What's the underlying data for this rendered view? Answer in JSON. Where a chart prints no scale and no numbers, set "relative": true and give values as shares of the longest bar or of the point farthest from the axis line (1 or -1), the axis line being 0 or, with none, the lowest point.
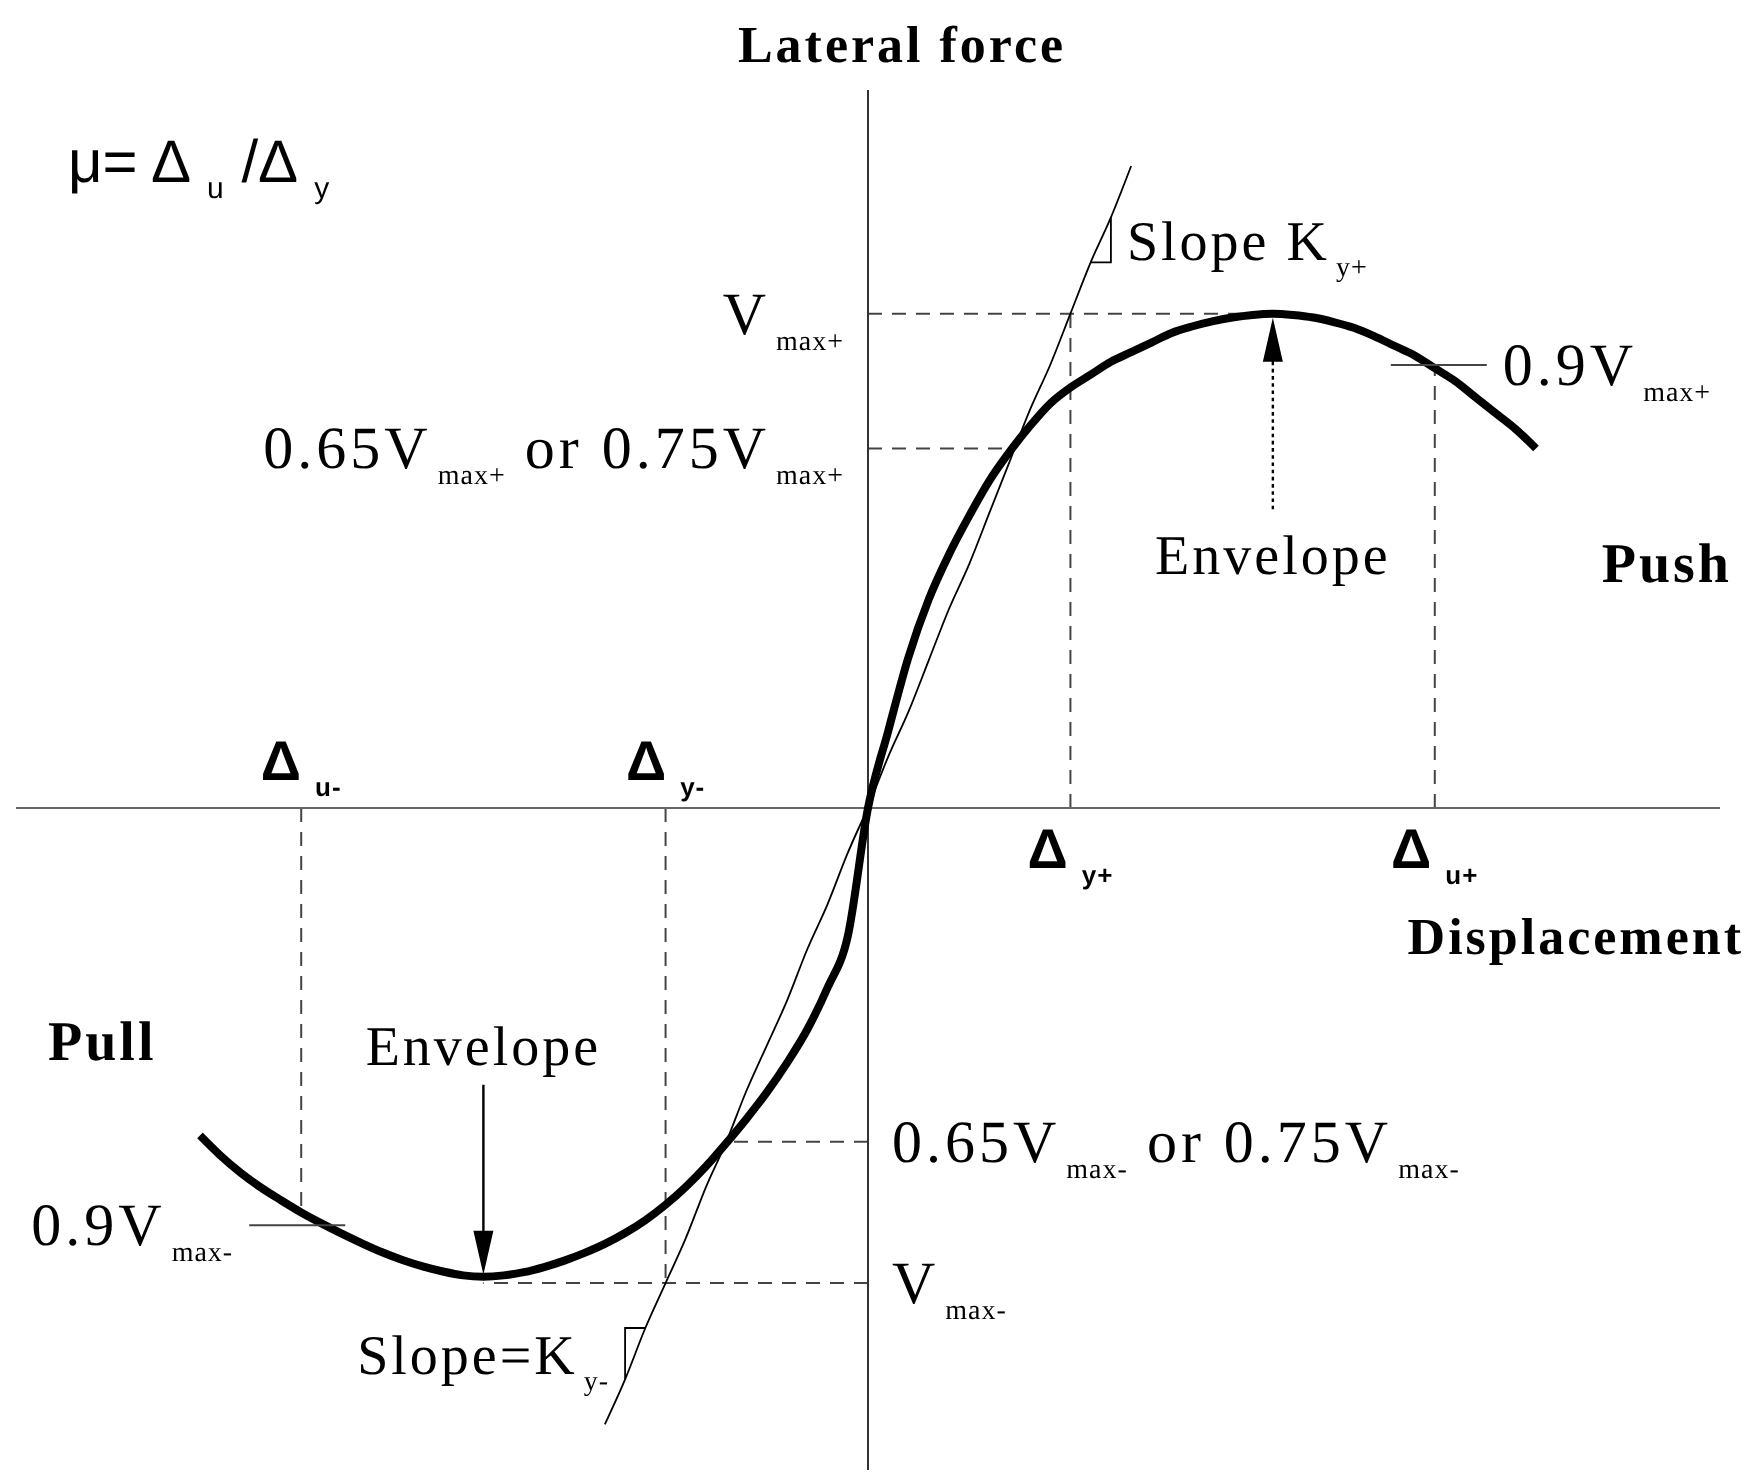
{
  "chart_data": {
    "type": "line",
    "relative": true,
    "xlabel": "Displacement",
    "ylabel": "Lateral force",
    "categories": [
      null,
      null,
      null,
      null,
      null,
      "Δ$_{u-}$",
      null,
      null,
      null,
      null,
      null,
      null,
      null,
      null,
      null,
      null,
      null,
      null,
      null,
      null,
      null,
      null,
      null,
      "Δ$_{y-}$",
      null,
      null,
      null,
      null,
      null,
      null,
      null,
      null,
      null,
      null,
      null,
      null,
      null,
      null,
      null,
      null,
      null,
      null,
      null,
      "Δ$_{y+}$",
      null,
      null,
      null,
      null,
      null,
      null,
      null,
      null,
      null,
      null,
      null,
      null,
      null,
      null,
      null,
      null,
      null,
      "Δ$_{u+}$",
      null,
      null,
      null,
      null,
      null
    ],
    "series": [
      {
        "color": "#000000",
        "values": [
          -0.51,
          -0.541,
          -0.568,
          -0.591,
          -0.611,
          -0.63,
          -0.647,
          -0.663,
          -0.678,
          -0.692,
          -0.704,
          -0.714,
          -0.722,
          -0.728,
          -0.73,
          -0.728,
          -0.723,
          -0.715,
          -0.705,
          -0.693,
          -0.679,
          -0.662,
          -0.642,
          -0.618,
          -0.59,
          -0.558,
          -0.522,
          -0.484,
          -0.443,
          -0.397,
          -0.345,
          -0.28,
          -0.2,
          0,
          0.12,
          0.235,
          0.325,
          0.395,
          0.455,
          0.51,
          0.555,
          0.595,
          0.63,
          0.655,
          0.675,
          0.695,
          0.71,
          0.725,
          0.74,
          0.75,
          0.758,
          0.764,
          0.768,
          0.77,
          0.768,
          0.764,
          0.757,
          0.748,
          0.735,
          0.72,
          0.705,
          0.685,
          0.665,
          0.64,
          0.615,
          0.59,
          0.56
        ]
      },
      {
        "name": "Slope K$_{y+}$",
        "color": "#000000",
        "values": [
          null,
          null,
          null,
          null,
          null,
          null,
          null,
          null,
          null,
          null,
          null,
          null,
          null,
          null,
          null,
          null,
          null,
          null,
          null,
          null,
          null,
          null,
          null,
          null,
          null,
          null,
          null,
          null,
          null,
          null,
          null,
          null,
          null,
          0,
          0.08,
          0.15,
          0.23,
          0.31,
          0.38,
          0.46,
          0.54,
          0.62,
          0.69,
          0.77,
          0.85,
          0.92,
          1,
          null,
          null,
          null,
          null,
          null,
          null,
          null,
          null,
          null,
          null,
          null,
          null,
          null,
          null,
          null,
          null,
          null,
          null,
          null,
          null
        ]
      },
      {
        "name": "Slope=K$_{y-}$",
        "color": "#000000",
        "values": [
          null,
          null,
          null,
          null,
          null,
          null,
          null,
          null,
          null,
          null,
          null,
          null,
          null,
          null,
          null,
          null,
          null,
          null,
          null,
          null,
          -0.96,
          -0.89,
          -0.81,
          -0.74,
          -0.67,
          -0.59,
          -0.52,
          -0.44,
          -0.37,
          -0.3,
          -0.22,
          -0.15,
          -0.07,
          0,
          null,
          null,
          null,
          null,
          null,
          null,
          null,
          null,
          null,
          null,
          null,
          null,
          null,
          null,
          null,
          null,
          null,
          null,
          null,
          null,
          null,
          null,
          null,
          null,
          null,
          null,
          null,
          null,
          null,
          null,
          null,
          null,
          null
        ]
      }
    ],
    "ref_lines": [
      {
        "axis": "y",
        "value": 0.77,
        "label": "V$_{max+}$",
        "color": "#444444",
        "line_style": "dashed"
      },
      {
        "axis": "y",
        "value": 0.56,
        "label": "0.65V$_{max+}$ or 0.75V$_{max+}$",
        "color": "#444444",
        "line_style": "dashed"
      },
      {
        "axis": "y",
        "value": -0.74,
        "label": "V$_{max-}$",
        "color": "#444444",
        "line_style": "dashed"
      },
      {
        "axis": "y",
        "value": -0.52,
        "label": "0.65V$_{max-}$ or 0.75V$_{max-}$",
        "color": "#444444",
        "line_style": "dashed"
      },
      {
        "axis": "x",
        "value": "Δ$_{u-}$",
        "color": "#444444",
        "line_style": "dashed"
      },
      {
        "axis": "x",
        "value": "Δ$_{y-}$",
        "color": "#444444",
        "line_style": "dashed"
      },
      {
        "axis": "x",
        "value": "Δ$_{y+}$",
        "color": "#444444",
        "line_style": "dashed"
      },
      {
        "axis": "x",
        "value": "Δ$_{u+}$",
        "color": "#444444",
        "line_style": "dashed"
      }
    ],
    "annotations": [
      "μ= Δ$_{u}$ /Δ$_{y}$",
      "Push",
      "Pull",
      "Envelope",
      "Envelope",
      {
        "text": "0.9V$_{max+}$",
        "x": "Δ$_{u+}$",
        "y": 0.69
      },
      {
        "text": "0.9V$_{max-}$",
        "x": "Δ$_{u-}$",
        "y": -0.65
      }
    ]
  }
}
